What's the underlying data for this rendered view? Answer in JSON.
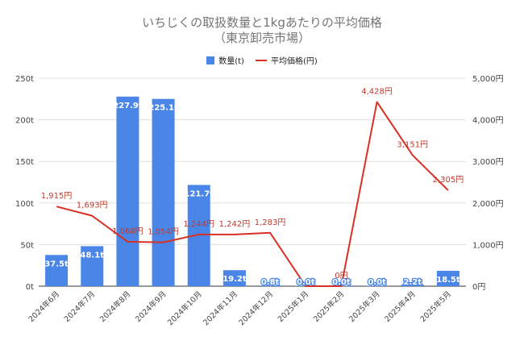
{
  "chart_data": {
    "type": "bar",
    "title": "いちじくの取扱数量と1kgあたりの平均価格",
    "subtitle": "（東京卸売市場）",
    "categories": [
      "2024年6月",
      "2024年7月",
      "2024年8月",
      "2024年9月",
      "2024年10月",
      "2024年11月",
      "2024年12月",
      "2025年1月",
      "2025年2月",
      "2025年3月",
      "2025年4月",
      "2025年5月"
    ],
    "series": [
      {
        "name": "数量(t)",
        "type": "bar",
        "axis": "left",
        "values": [
          37.5,
          48.1,
          227.9,
          225.1,
          121.7,
          19.2,
          0.8,
          0.0,
          0.0,
          0.0,
          2.2,
          18.5
        ],
        "labels": [
          "37.5t",
          "48.1t",
          "227.9t",
          "225.1t",
          "121.7t",
          "19.2t",
          "0.8t",
          "0.0t",
          "0.0t",
          "0.0t",
          "2.2t",
          "18.5t"
        ]
      },
      {
        "name": "平均価格(円)",
        "type": "line",
        "axis": "right",
        "values": [
          1915,
          1693,
          1068,
          1054,
          1244,
          1242,
          1283,
          0,
          0,
          4428,
          3151,
          2305
        ],
        "labels": [
          "1,915円",
          "1,693円",
          "1,068円",
          "1,054円",
          "1,244円",
          "1,242円",
          "1,283円",
          "0円",
          "0円",
          "4,428円",
          "3,151円",
          "2,305円"
        ],
        "point_shown": [
          true,
          true,
          true,
          true,
          true,
          true,
          true,
          false,
          true,
          true,
          true,
          true
        ]
      }
    ],
    "y_left": {
      "lim": [
        0,
        250
      ],
      "ticks": [
        "0t",
        "50t",
        "100t",
        "150t",
        "200t",
        "250t"
      ]
    },
    "y_right": {
      "lim": [
        0,
        5000
      ],
      "ticks": [
        "0円",
        "1,000円",
        "2,000円",
        "3,000円",
        "4,000円",
        "5,000円"
      ]
    },
    "colors": {
      "bar": "#4a86e8",
      "line": "#d93025",
      "price_label": "#c0392b",
      "grid": "#e0e0e0"
    },
    "legend_position": "top-center",
    "grid": true
  }
}
